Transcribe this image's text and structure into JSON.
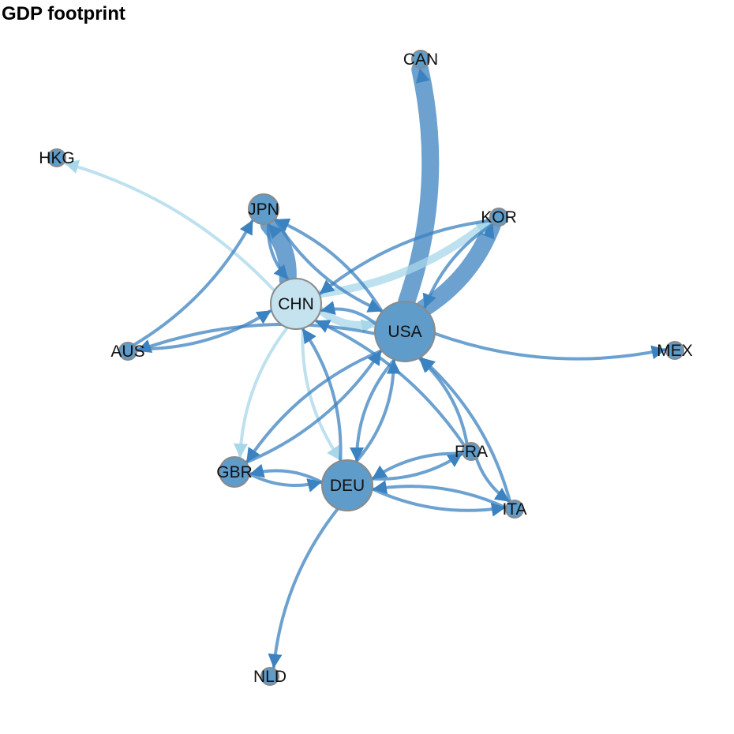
{
  "title": "GDP footprint",
  "colors": {
    "dark_edge": "#3b82c0",
    "light_edge": "#a8d7ea",
    "dark_node": "#5f9cca",
    "light_node": "#c5e2ef",
    "node_border": "#8a8a8a"
  },
  "nodes": [
    {
      "id": "CAN",
      "label": "CAN",
      "size": "small",
      "fill": "dark"
    },
    {
      "id": "HKG",
      "label": "HKG",
      "size": "small",
      "fill": "dark"
    },
    {
      "id": "JPN",
      "label": "JPN",
      "size": "medium",
      "fill": "dark"
    },
    {
      "id": "KOR",
      "label": "KOR",
      "size": "small",
      "fill": "dark"
    },
    {
      "id": "CHN",
      "label": "CHN",
      "size": "large",
      "fill": "light"
    },
    {
      "id": "USA",
      "label": "USA",
      "size": "xlarge",
      "fill": "dark"
    },
    {
      "id": "AUS",
      "label": "AUS",
      "size": "small",
      "fill": "dark"
    },
    {
      "id": "MEX",
      "label": "MEX",
      "size": "small",
      "fill": "dark"
    },
    {
      "id": "FRA",
      "label": "FRA",
      "size": "small",
      "fill": "dark"
    },
    {
      "id": "GBR",
      "label": "GBR",
      "size": "medium",
      "fill": "dark"
    },
    {
      "id": "DEU",
      "label": "DEU",
      "size": "large",
      "fill": "dark"
    },
    {
      "id": "ITA",
      "label": "ITA",
      "size": "small",
      "fill": "dark"
    },
    {
      "id": "NLD",
      "label": "NLD",
      "size": "small",
      "fill": "dark"
    }
  ],
  "edges": [
    {
      "from": "USA",
      "to": "CAN",
      "weight": "heavy",
      "color": "dark"
    },
    {
      "from": "USA",
      "to": "KOR",
      "weight": "heavy",
      "color": "dark"
    },
    {
      "from": "CHN",
      "to": "JPN",
      "weight": "heavy",
      "color": "dark"
    },
    {
      "from": "CHN",
      "to": "HKG",
      "weight": "light",
      "color": "light"
    },
    {
      "from": "CHN",
      "to": "KOR",
      "weight": "medium",
      "color": "light"
    },
    {
      "from": "CHN",
      "to": "USA",
      "weight": "medium",
      "color": "light"
    },
    {
      "from": "CHN",
      "to": "GBR",
      "weight": "light",
      "color": "light"
    },
    {
      "from": "CHN",
      "to": "DEU",
      "weight": "light",
      "color": "light"
    },
    {
      "from": "KOR",
      "to": "CHN",
      "weight": "light",
      "color": "dark"
    },
    {
      "from": "KOR",
      "to": "USA",
      "weight": "light",
      "color": "dark"
    },
    {
      "from": "AUS",
      "to": "JPN",
      "weight": "light",
      "color": "dark"
    },
    {
      "from": "AUS",
      "to": "CHN",
      "weight": "light",
      "color": "dark"
    },
    {
      "from": "USA",
      "to": "AUS",
      "weight": "light",
      "color": "dark"
    },
    {
      "from": "USA",
      "to": "MEX",
      "weight": "light",
      "color": "dark"
    },
    {
      "from": "USA",
      "to": "JPN",
      "weight": "light",
      "color": "dark"
    },
    {
      "from": "JPN",
      "to": "USA",
      "weight": "light",
      "color": "dark"
    },
    {
      "from": "USA",
      "to": "CHN",
      "weight": "light",
      "color": "dark"
    },
    {
      "from": "USA",
      "to": "GBR",
      "weight": "light",
      "color": "dark"
    },
    {
      "from": "GBR",
      "to": "USA",
      "weight": "light",
      "color": "dark"
    },
    {
      "from": "USA",
      "to": "DEU",
      "weight": "light",
      "color": "dark"
    },
    {
      "from": "DEU",
      "to": "USA",
      "weight": "light",
      "color": "dark"
    },
    {
      "from": "DEU",
      "to": "CHN",
      "weight": "light",
      "color": "dark"
    },
    {
      "from": "DEU",
      "to": "GBR",
      "weight": "light",
      "color": "dark"
    },
    {
      "from": "GBR",
      "to": "DEU",
      "weight": "light",
      "color": "dark"
    },
    {
      "from": "DEU",
      "to": "FRA",
      "weight": "light",
      "color": "dark"
    },
    {
      "from": "FRA",
      "to": "DEU",
      "weight": "light",
      "color": "dark"
    },
    {
      "from": "DEU",
      "to": "ITA",
      "weight": "light",
      "color": "dark"
    },
    {
      "from": "ITA",
      "to": "DEU",
      "weight": "light",
      "color": "dark"
    },
    {
      "from": "FRA",
      "to": "USA",
      "weight": "light",
      "color": "dark"
    },
    {
      "from": "FRA",
      "to": "CHN",
      "weight": "light",
      "color": "dark"
    },
    {
      "from": "FRA",
      "to": "ITA",
      "weight": "light",
      "color": "dark"
    },
    {
      "from": "ITA",
      "to": "USA",
      "weight": "light",
      "color": "dark"
    },
    {
      "from": "DEU",
      "to": "NLD",
      "weight": "light",
      "color": "dark"
    },
    {
      "from": "JPN",
      "to": "CHN",
      "weight": "light",
      "color": "dark"
    }
  ]
}
